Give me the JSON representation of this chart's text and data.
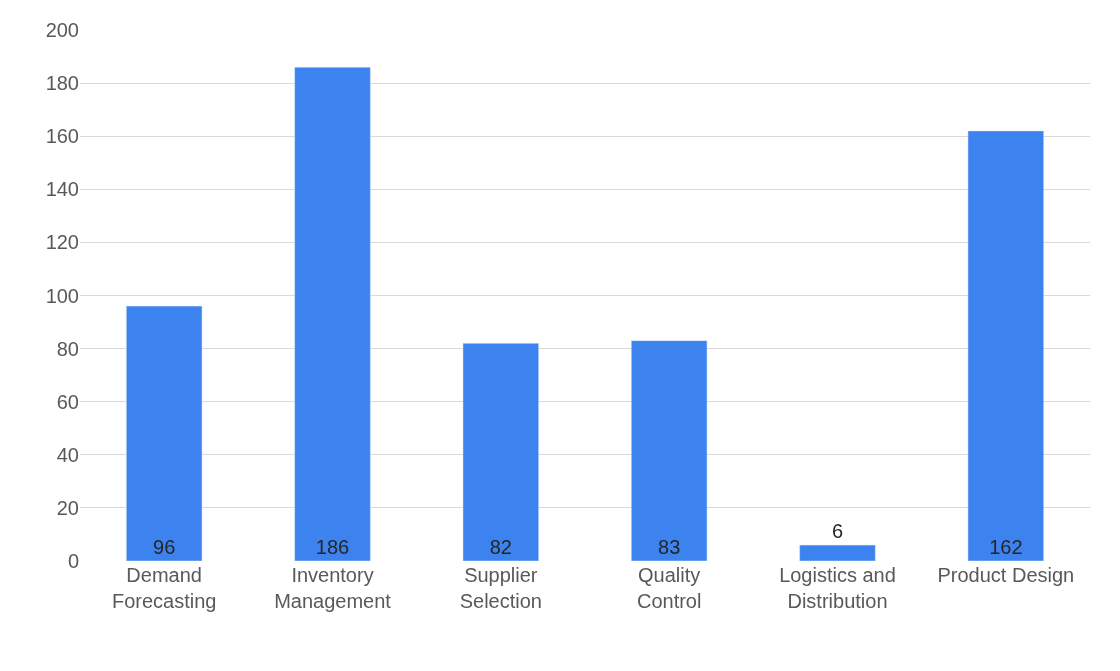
{
  "chart_data": {
    "type": "bar",
    "categories": [
      "Demand Forecasting",
      "Inventory Management",
      "Supplier Selection",
      "Quality Control",
      "Logistics and Distribution",
      "Product Design"
    ],
    "values": [
      96,
      186,
      82,
      83,
      6,
      162
    ],
    "color": "#3d83ef",
    "ylim": [
      0,
      200
    ],
    "yticks": [
      0,
      20,
      40,
      60,
      80,
      100,
      120,
      140,
      160,
      180,
      200
    ],
    "grid": "y",
    "data_labels": true
  }
}
